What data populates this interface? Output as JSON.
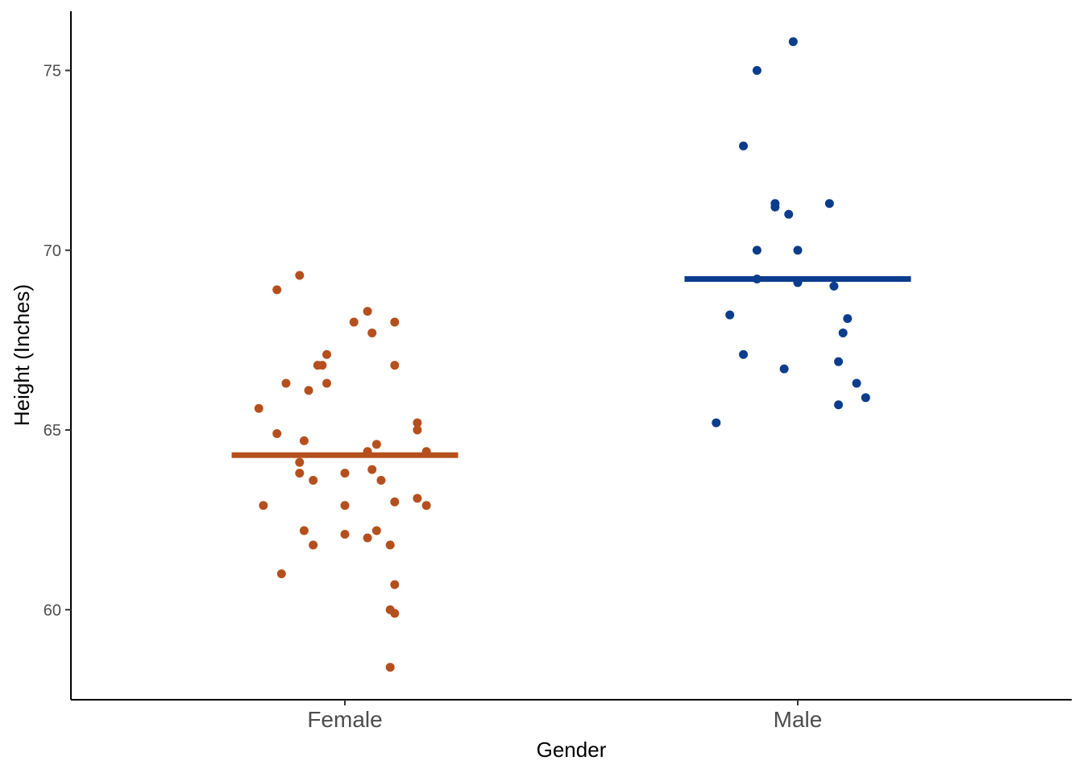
{
  "chart_data": {
    "type": "scatter",
    "subtype": "jittered strip plot with mean lines",
    "xlabel": "Gender",
    "ylabel": "Height (Inches)",
    "categories": [
      "Female",
      "Male"
    ],
    "ylim": [
      57.5,
      76.5
    ],
    "yticks": [
      "60",
      "65",
      "70",
      "75"
    ],
    "grid": false,
    "series": [
      {
        "category": "Female",
        "color": "#B5501E",
        "mean": 64.3,
        "points": [
          {
            "x": -0.19,
            "y": 65.6
          },
          {
            "x": -0.15,
            "y": 68.9
          },
          {
            "x": -0.1,
            "y": 69.3
          },
          {
            "x": -0.13,
            "y": 66.3
          },
          {
            "x": -0.06,
            "y": 66.8
          },
          {
            "x": -0.05,
            "y": 66.8
          },
          {
            "x": -0.04,
            "y": 67.1
          },
          {
            "x": -0.08,
            "y": 66.1
          },
          {
            "x": -0.04,
            "y": 66.3
          },
          {
            "x": 0.02,
            "y": 68.0
          },
          {
            "x": 0.05,
            "y": 68.3
          },
          {
            "x": 0.06,
            "y": 67.7
          },
          {
            "x": 0.11,
            "y": 68.0
          },
          {
            "x": 0.11,
            "y": 66.8
          },
          {
            "x": -0.15,
            "y": 64.9
          },
          {
            "x": -0.09,
            "y": 64.7
          },
          {
            "x": -0.1,
            "y": 64.1
          },
          {
            "x": -0.1,
            "y": 63.8
          },
          {
            "x": -0.07,
            "y": 63.6
          },
          {
            "x": 0.0,
            "y": 63.8
          },
          {
            "x": 0.05,
            "y": 64.4
          },
          {
            "x": 0.07,
            "y": 64.6
          },
          {
            "x": 0.06,
            "y": 63.9
          },
          {
            "x": 0.08,
            "y": 63.6
          },
          {
            "x": 0.16,
            "y": 65.2
          },
          {
            "x": 0.16,
            "y": 65.0
          },
          {
            "x": 0.18,
            "y": 64.4
          },
          {
            "x": 0.16,
            "y": 63.1
          },
          {
            "x": 0.18,
            "y": 62.9
          },
          {
            "x": 0.11,
            "y": 63.0
          },
          {
            "x": -0.18,
            "y": 62.9
          },
          {
            "x": 0.0,
            "y": 62.9
          },
          {
            "x": -0.09,
            "y": 62.2
          },
          {
            "x": -0.07,
            "y": 61.8
          },
          {
            "x": 0.0,
            "y": 62.1
          },
          {
            "x": 0.05,
            "y": 62.0
          },
          {
            "x": 0.07,
            "y": 62.2
          },
          {
            "x": 0.1,
            "y": 61.8
          },
          {
            "x": -0.14,
            "y": 61.0
          },
          {
            "x": 0.11,
            "y": 60.7
          },
          {
            "x": 0.1,
            "y": 60.0
          },
          {
            "x": 0.11,
            "y": 59.9
          },
          {
            "x": 0.1,
            "y": 58.4
          }
        ]
      },
      {
        "category": "Male",
        "color": "#0B3D8C",
        "mean": 69.2,
        "points": [
          {
            "x": -0.01,
            "y": 75.8
          },
          {
            "x": -0.09,
            "y": 75.0
          },
          {
            "x": -0.12,
            "y": 72.9
          },
          {
            "x": -0.05,
            "y": 71.3
          },
          {
            "x": -0.05,
            "y": 71.2
          },
          {
            "x": -0.02,
            "y": 71.0
          },
          {
            "x": 0.07,
            "y": 71.3
          },
          {
            "x": -0.09,
            "y": 70.0
          },
          {
            "x": 0.0,
            "y": 70.0
          },
          {
            "x": -0.09,
            "y": 69.2
          },
          {
            "x": 0.0,
            "y": 69.1
          },
          {
            "x": 0.08,
            "y": 69.0
          },
          {
            "x": -0.15,
            "y": 68.2
          },
          {
            "x": 0.11,
            "y": 68.1
          },
          {
            "x": 0.1,
            "y": 67.7
          },
          {
            "x": -0.12,
            "y": 67.1
          },
          {
            "x": -0.03,
            "y": 66.7
          },
          {
            "x": 0.09,
            "y": 66.9
          },
          {
            "x": 0.13,
            "y": 66.3
          },
          {
            "x": 0.15,
            "y": 65.9
          },
          {
            "x": 0.09,
            "y": 65.7
          },
          {
            "x": -0.18,
            "y": 65.2
          }
        ]
      }
    ]
  }
}
